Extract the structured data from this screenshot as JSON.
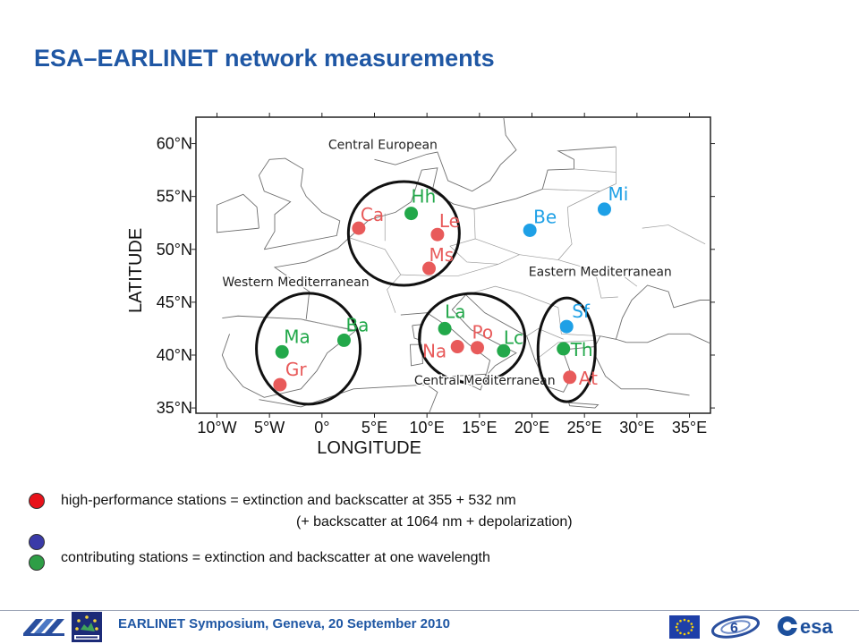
{
  "slide": {
    "title": "ESA–EARLINET network measurements"
  },
  "map": {
    "lat_ticks": [
      {
        "value": 60,
        "label": "60°N"
      },
      {
        "value": 55,
        "label": "55°N"
      },
      {
        "value": 50,
        "label": "50°N"
      },
      {
        "value": 45,
        "label": "45°N"
      },
      {
        "value": 40,
        "label": "40°N"
      },
      {
        "value": 35,
        "label": "35°N"
      }
    ],
    "lon_ticks": [
      {
        "value": -10,
        "label": "10°W"
      },
      {
        "value": -5,
        "label": "5°W"
      },
      {
        "value": 0,
        "label": "0°"
      },
      {
        "value": 5,
        "label": "5°E"
      },
      {
        "value": 10,
        "label": "10°E"
      },
      {
        "value": 15,
        "label": "15°E"
      },
      {
        "value": 20,
        "label": "20°E"
      },
      {
        "value": 25,
        "label": "25°E"
      },
      {
        "value": 30,
        "label": "30°E"
      },
      {
        "value": 35,
        "label": "35°E"
      }
    ],
    "xlabel": "LONGITUDE",
    "ylabel": "LATITUDE",
    "colors": {
      "high_performance": "#e85a5a",
      "contributing": "#22a84a",
      "eastern": "#1ea0e6"
    },
    "regions": [
      {
        "name": "Central European",
        "label": "Central European"
      },
      {
        "name": "Eastern Mediterranean",
        "label": "Eastern Mediterranean"
      },
      {
        "name": "Western Mediterranean",
        "label": "Western Mediterranean"
      },
      {
        "name": "Central Mediterranean",
        "label": "Central Mediterranean"
      }
    ],
    "stations": [
      {
        "code": "Ca",
        "lon": 3.5,
        "lat": 52.0,
        "color": "#e85a5a"
      },
      {
        "code": "Hh",
        "lon": 8.5,
        "lat": 53.4,
        "color": "#22a84a"
      },
      {
        "code": "Le",
        "lon": 11.0,
        "lat": 51.4,
        "color": "#e85a5a"
      },
      {
        "code": "Ms",
        "lon": 10.2,
        "lat": 48.2,
        "color": "#e85a5a"
      },
      {
        "code": "Be",
        "lon": 19.8,
        "lat": 51.8,
        "color": "#1ea0e6"
      },
      {
        "code": "Mi",
        "lon": 26.9,
        "lat": 53.8,
        "color": "#1ea0e6"
      },
      {
        "code": "Ma",
        "lon": -3.8,
        "lat": 40.3,
        "color": "#22a84a"
      },
      {
        "code": "Ba",
        "lon": 2.1,
        "lat": 41.4,
        "color": "#22a84a"
      },
      {
        "code": "Gr",
        "lon": -4.0,
        "lat": 37.2,
        "color": "#e85a5a"
      },
      {
        "code": "La",
        "lon": 11.7,
        "lat": 42.5,
        "color": "#22a84a"
      },
      {
        "code": "Po",
        "lon": 14.8,
        "lat": 40.7,
        "color": "#e85a5a"
      },
      {
        "code": "Na",
        "lon": 12.9,
        "lat": 40.8,
        "color": "#e85a5a"
      },
      {
        "code": "Lc",
        "lon": 17.3,
        "lat": 40.4,
        "color": "#22a84a"
      },
      {
        "code": "Sf",
        "lon": 23.3,
        "lat": 42.7,
        "color": "#1ea0e6"
      },
      {
        "code": "Th",
        "lon": 23.0,
        "lat": 40.6,
        "color": "#22a84a"
      },
      {
        "code": "At",
        "lon": 23.6,
        "lat": 37.9,
        "color": "#e85a5a"
      }
    ]
  },
  "legend": {
    "high_performance_line1": "high-performance stations = extinction and backscatter at 355 + 532 nm",
    "high_performance_line2": "(+ backscatter at 1064 nm + depolarization)",
    "contributing": "contributing stations = extinction and backscatter at one wavelength",
    "colors": {
      "red": "#e8121a",
      "blue": "#3a3aa8",
      "green": "#2e9e46"
    }
  },
  "footer": {
    "text": "EARLINET Symposium, Geneva, 20 September 2010",
    "logos": [
      "ift-logo",
      "earlinet-logo",
      "eu-flag-logo",
      "fp6-logo",
      "esa-logo"
    ]
  }
}
